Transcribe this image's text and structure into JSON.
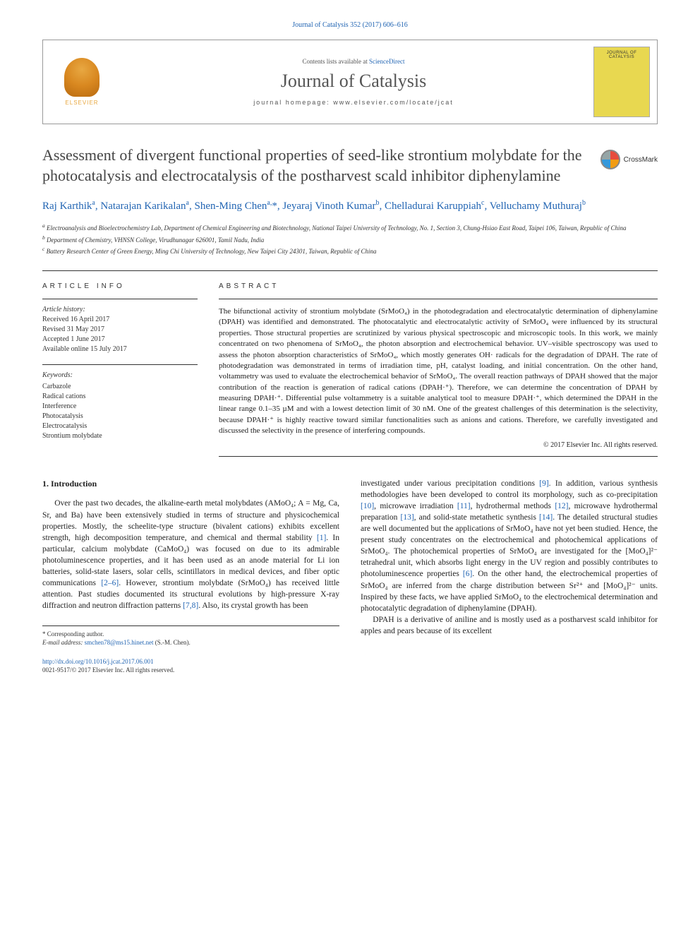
{
  "citation_line": "Journal of Catalysis 352 (2017) 606–616",
  "header": {
    "contents_text": "Contents lists available at",
    "contents_link": "ScienceDirect",
    "journal_name": "Journal of Catalysis",
    "homepage_label": "journal homepage:",
    "homepage_url": "www.elsevier.com/locate/jcat",
    "elsevier": "ELSEVIER",
    "cover_text": "JOURNAL OF CATALYSIS"
  },
  "title": "Assessment of divergent functional properties of seed-like strontium molybdate for the photocatalysis and electrocatalysis of the postharvest scald inhibitor diphenylamine",
  "crossmark": "CrossMark",
  "authors_html": "Raj Karthik<sup>a</sup>, Natarajan Karikalan<sup>a</sup>, Shen-Ming Chen<sup>a,</sup>*, Jeyaraj Vinoth Kumar<sup>b</sup>, Chelladurai Karuppiah<sup>c</sup>, Velluchamy Muthuraj<sup>b</sup>",
  "affiliations": {
    "a": "Electroanalysis and Bioelectrochemistry Lab, Department of Chemical Engineering and Biotechnology, National Taipei University of Technology, No. 1, Section 3, Chung-Hsiao East Road, Taipei 106, Taiwan, Republic of China",
    "b": "Department of Chemistry, VHNSN College, Virudhunagar 626001, Tamil Nadu, India",
    "c": "Battery Research Center of Green Energy, Ming Chi University of Technology, New Taipei City 24301, Taiwan, Republic of China"
  },
  "info_label": "ARTICLE INFO",
  "abstract_label": "ABSTRACT",
  "history": {
    "heading": "Article history:",
    "received": "Received 16 April 2017",
    "revised": "Revised 31 May 2017",
    "accepted": "Accepted 1 June 2017",
    "online": "Available online 15 July 2017"
  },
  "keywords": {
    "heading": "Keywords:",
    "items": [
      "Carbazole",
      "Radical cations",
      "Interference",
      "Photocatalysis",
      "Electrocatalysis",
      "Strontium molybdate"
    ]
  },
  "abstract": "The bifunctional activity of strontium molybdate (SrMoO₄) in the photodegradation and electrocatalytic determination of diphenylamine (DPAH) was identified and demonstrated. The photocatalytic and electrocatalytic activity of SrMoO₄ were influenced by its structural properties. Those structural properties are scrutinized by various physical spectroscopic and microscopic tools. In this work, we mainly concentrated on two phenomena of SrMoO₄, the photon absorption and electrochemical behavior. UV–visible spectroscopy was used to assess the photon absorption characteristics of SrMoO₄, which mostly generates OH· radicals for the degradation of DPAH. The rate of photodegradation was demonstrated in terms of irradiation time, pH, catalyst loading, and initial concentration. On the other hand, voltammetry was used to evaluate the electrochemical behavior of SrMoO₄. The overall reaction pathways of DPAH showed that the major contribution of the reaction is generation of radical cations (DPAH·⁺). Therefore, we can determine the concentration of DPAH by measuring DPAH·⁺. Differential pulse voltammetry is a suitable analytical tool to measure DPAH·⁺, which determined the DPAH in the linear range 0.1–35 µM and with a lowest detection limit of 30 nM. One of the greatest challenges of this determination is the selectivity, because DPAH·⁺ is highly reactive toward similar functionalities such as anions and cations. Therefore, we carefully investigated and discussed the selectivity in the presence of interfering compounds.",
  "copyright": "© 2017 Elsevier Inc. All rights reserved.",
  "body": {
    "heading": "1. Introduction",
    "col1_p1_a": "Over the past two decades, the alkaline-earth metal molybdates (AMoO₄; A = Mg, Ca, Sr, and Ba) have been extensively studied in terms of structure and physicochemical properties. Mostly, the scheelite-type structure (bivalent cations) exhibits excellent strength, high decomposition temperature, and chemical and thermal stability ",
    "ref1": "[1]",
    "col1_p1_b": ". In particular, calcium molybdate (CaMoO₄) was focused on due to its admirable photoluminescence properties, and it has been used as an anode material for Li ion batteries, solid-state lasers, solar cells, scintillators in medical devices, and fiber optic communications ",
    "ref2_6": "[2–6]",
    "col1_p1_c": ". However, strontium molybdate (SrMoO₄) has received little attention. Past studies documented its structural evolutions by high-pressure X-ray diffraction and neutron diffraction patterns ",
    "ref7_8": "[7,8]",
    "col1_p1_d": ". Also, its crystal growth has been",
    "col2_p1_a": "investigated under various precipitation conditions ",
    "ref9": "[9]",
    "col2_p1_b": ". In addition, various synthesis methodologies have been developed to control its morphology, such as co-precipitation ",
    "ref10": "[10]",
    "col2_p1_c": ", microwave irradiation ",
    "ref11": "[11]",
    "col2_p1_d": ", hydrothermal methods ",
    "ref12": "[12]",
    "col2_p1_e": ", microwave hydrothermal preparation ",
    "ref13": "[13]",
    "col2_p1_f": ", and solid-state metathetic synthesis ",
    "ref14": "[14]",
    "col2_p1_g": ". The detailed structural studies are well documented but the applications of SrMoO₄ have not yet been studied. Hence, the present study concentrates on the electrochemical and photochemical applications of SrMoO₄. The photochemical properties of SrMoO₄ are investigated for the [MoO₄]²⁻ tetrahedral unit, which absorbs light energy in the UV region and possibly contributes to photoluminescence properties ",
    "ref6": "[6]",
    "col2_p1_h": ". On the other hand, the electrochemical properties of SrMoO₄ are inferred from the charge distribution between Sr²⁺ and [MoO₄]²⁻ units. Inspired by these facts, we have applied SrMoO₄ to the electrochemical determination and photocatalytic degradation of diphenylamine (DPAH).",
    "col2_p2": "DPAH is a derivative of aniline and is mostly used as a postharvest scald inhibitor for apples and pears because of its excellent"
  },
  "footnote": {
    "corr": "* Corresponding author.",
    "email_label": "E-mail address:",
    "email": "smchen78@ms15.hinet.net",
    "email_name": "(S.-M. Chen)."
  },
  "footer": {
    "doi": "http://dx.doi.org/10.1016/j.jcat.2017.06.001",
    "issn": "0021-9517/© 2017 Elsevier Inc. All rights reserved."
  },
  "colors": {
    "link": "#2265b3",
    "text": "#222222",
    "heading_gray": "#555555",
    "cover_bg": "#e8d850",
    "tree_orange": "#e8a842"
  }
}
